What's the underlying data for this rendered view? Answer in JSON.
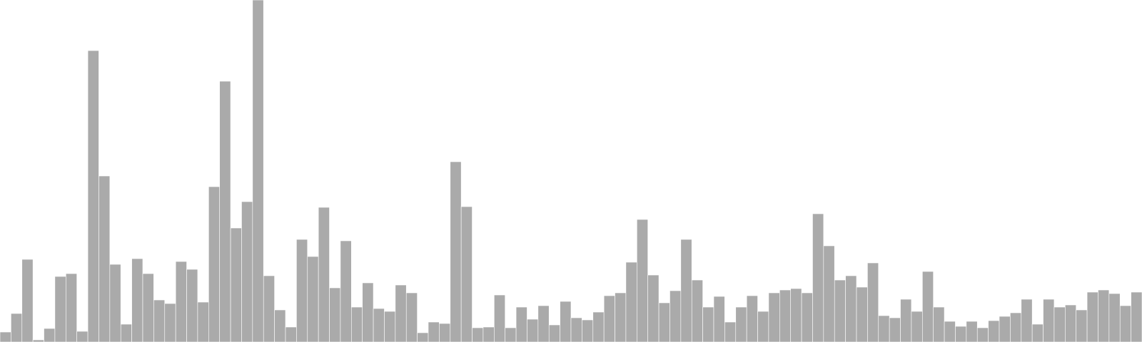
{
  "chart_data": {
    "type": "bar",
    "title": "",
    "xlabel": "",
    "ylabel": "",
    "grid": false,
    "legend": "none",
    "axes_visible": false,
    "bar_color": "#aaaaaa",
    "bar_edge_color": "#ffffff",
    "ylim": [
      0,
      480
    ],
    "values": [
      14,
      40,
      116,
      3,
      19,
      92,
      96,
      15,
      409,
      233,
      109,
      25,
      117,
      96,
      59,
      54,
      113,
      102,
      56,
      218,
      366,
      160,
      197,
      480,
      93,
      45,
      21,
      144,
      120,
      189,
      76,
      142,
      49,
      83,
      47,
      43,
      80,
      69,
      13,
      28,
      26,
      253,
      190,
      20,
      21,
      66,
      20,
      49,
      32,
      51,
      24,
      57,
      34,
      31,
      42,
      65,
      69,
      112,
      172,
      94,
      55,
      72,
      144,
      87,
      49,
      64,
      28,
      49,
      65,
      43,
      69,
      73,
      75,
      69,
      180,
      135,
      87,
      93,
      77,
      111,
      37,
      34,
      60,
      43,
      99,
      49,
      29,
      22,
      29,
      20,
      30,
      36,
      41,
      60,
      25,
      60,
      49,
      52,
      45,
      70,
      73,
      68,
      51,
      70
    ]
  }
}
